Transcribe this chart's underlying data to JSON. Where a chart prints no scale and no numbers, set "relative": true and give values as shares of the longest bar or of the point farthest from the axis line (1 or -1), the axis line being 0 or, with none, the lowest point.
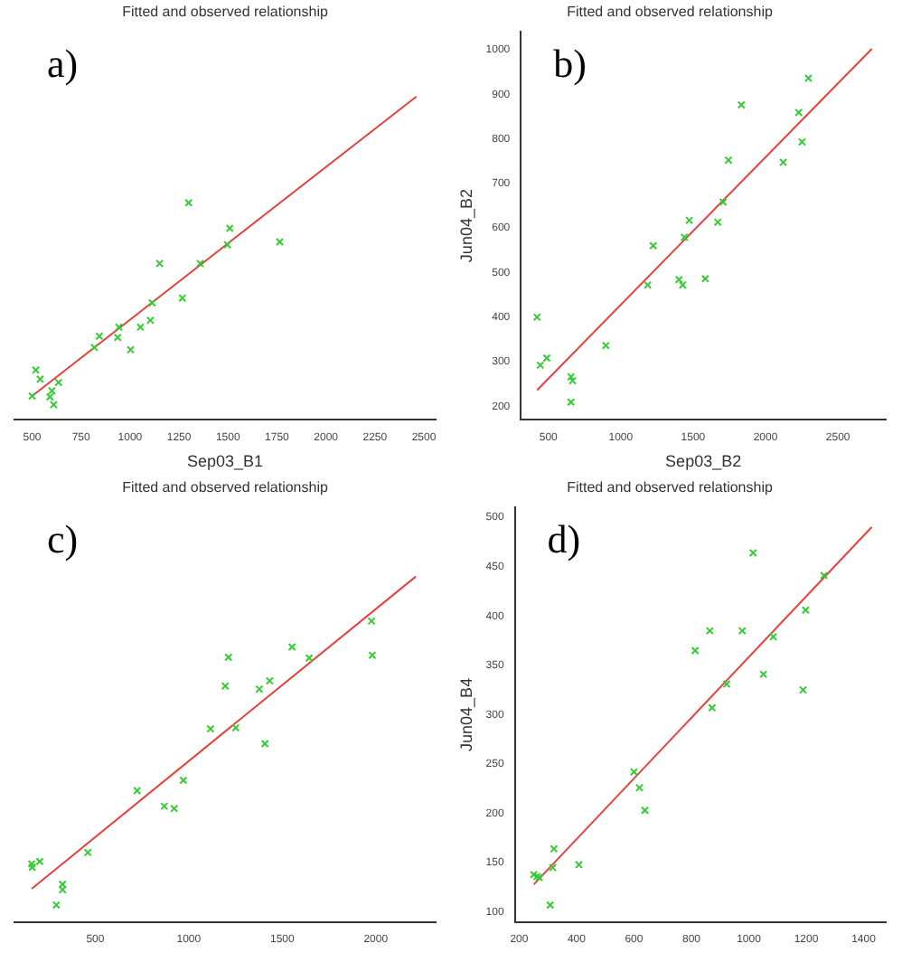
{
  "chart_data": [
    {
      "type": "scatter",
      "title": "Fitted and observed relationship",
      "xlabel": "Sep03_B1",
      "annotations": [
        "a)"
      ],
      "relative": true,
      "xlim": [
        410,
        2560
      ],
      "xticks": [
        500,
        750,
        1000,
        1250,
        1500,
        1750,
        2000,
        2250,
        2500
      ],
      "tick_labels": "x",
      "grid": false,
      "legend": false,
      "series": [
        {
          "marker": "cross",
          "color": "#33cc33",
          "x": [
            500,
            519,
            541,
            601,
            591,
            610,
            635,
            818,
            843,
            937,
            943,
            1003,
            1053,
            1104,
            1113,
            1151,
            1267,
            1299,
            1358,
            1497,
            1509,
            1764
          ],
          "values": [
            0.073,
            0.153,
            0.125,
            0.089,
            0.07,
            0.046,
            0.115,
            0.223,
            0.258,
            0.254,
            0.286,
            0.216,
            0.286,
            0.307,
            0.361,
            0.483,
            0.376,
            0.671,
            0.483,
            0.541,
            0.592,
            0.55
          ]
        },
        {
          "type": "line",
          "marker": "none",
          "color": "#e8403a",
          "x": [
            500,
            2462
          ],
          "values": [
            0.073,
            1
          ]
        }
      ]
    },
    {
      "type": "scatter",
      "title": "Fitted and observed relationship",
      "xlabel": "Sep03_B2",
      "ylabel": "Jun04_B2",
      "annotations": [
        "b)"
      ],
      "xlim": [
        310,
        2830
      ],
      "xticks": [
        500,
        1000,
        1500,
        2000,
        2500
      ],
      "ylim": [
        170,
        1040
      ],
      "yticks": [
        200,
        300,
        400,
        500,
        600,
        700,
        800,
        900,
        1000
      ],
      "grid": false,
      "legend": false,
      "series": [
        {
          "marker": "cross",
          "color": "#33cc33",
          "x": [
            422,
            444,
            489,
            656,
            667,
            656,
            897,
            1186,
            1224,
            1402,
            1428,
            1439,
            1473,
            1584,
            1670,
            1707,
            1744,
            1833,
            2122,
            2229,
            2252,
            2296
          ],
          "values": [
            400,
            292,
            308,
            266,
            257,
            209,
            336,
            472,
            560,
            484,
            472,
            579,
            617,
            486,
            613,
            658,
            752,
            876,
            747,
            859,
            793,
            936
          ]
        },
        {
          "type": "line",
          "marker": "none",
          "color": "#e8403a",
          "x": [
            422,
            2734
          ],
          "values": [
            236,
            1002
          ]
        }
      ]
    },
    {
      "type": "scatter",
      "title": "Fitted and observed relationship",
      "annotations": [
        "c)"
      ],
      "relative": true,
      "xlim": [
        68,
        2320
      ],
      "xticks": [
        500,
        1000,
        1500,
        2000
      ],
      "tick_labels": "x",
      "grid": false,
      "legend": false,
      "series": [
        {
          "marker": "cross",
          "color": "#33cc33",
          "x": [
            160,
            163,
            203,
            292,
            325,
            325,
            460,
            724,
            869,
            922,
            971,
            1116,
            1195,
            1212,
            1251,
            1377,
            1433,
            1407,
            1552,
            1644,
            1977,
            1981
          ],
          "values": [
            0.168,
            0.158,
            0.175,
            0.049,
            0.109,
            0.093,
            0.201,
            0.38,
            0.335,
            0.328,
            0.41,
            0.559,
            0.683,
            0.766,
            0.562,
            0.674,
            0.698,
            0.516,
            0.796,
            0.764,
            0.871,
            0.772
          ]
        },
        {
          "type": "line",
          "marker": "none",
          "color": "#e8403a",
          "x": [
            160,
            2214
          ],
          "values": [
            0.096,
            1
          ]
        }
      ]
    },
    {
      "type": "scatter",
      "title": "Fitted and observed relationship",
      "ylabel": "Jun04_B4",
      "annotations": [
        "d)"
      ],
      "xlim": [
        185,
        1477
      ],
      "xticks": [
        200,
        400,
        600,
        800,
        1000,
        1200,
        1400
      ],
      "ylim": [
        90,
        510
      ],
      "yticks": [
        100,
        150,
        200,
        250,
        300,
        350,
        400,
        450,
        500
      ],
      "grid": false,
      "legend": false,
      "series": [
        {
          "marker": "cross",
          "color": "#33cc33",
          "x": [
            251,
            262,
            270,
            308,
            317,
            321,
            408,
            600,
            619,
            638,
            813,
            864,
            872,
            923,
            977,
            1015,
            1051,
            1085,
            1189,
            1198,
            1262
          ],
          "values": [
            138,
            136,
            135,
            107,
            145,
            164,
            148,
            242,
            226,
            203,
            365,
            385,
            307,
            331,
            385,
            464,
            341,
            379,
            325,
            406,
            441
          ]
        },
        {
          "type": "line",
          "marker": "none",
          "color": "#e8403a",
          "x": [
            251,
            1428
          ],
          "values": [
            128,
            490
          ]
        }
      ]
    }
  ]
}
